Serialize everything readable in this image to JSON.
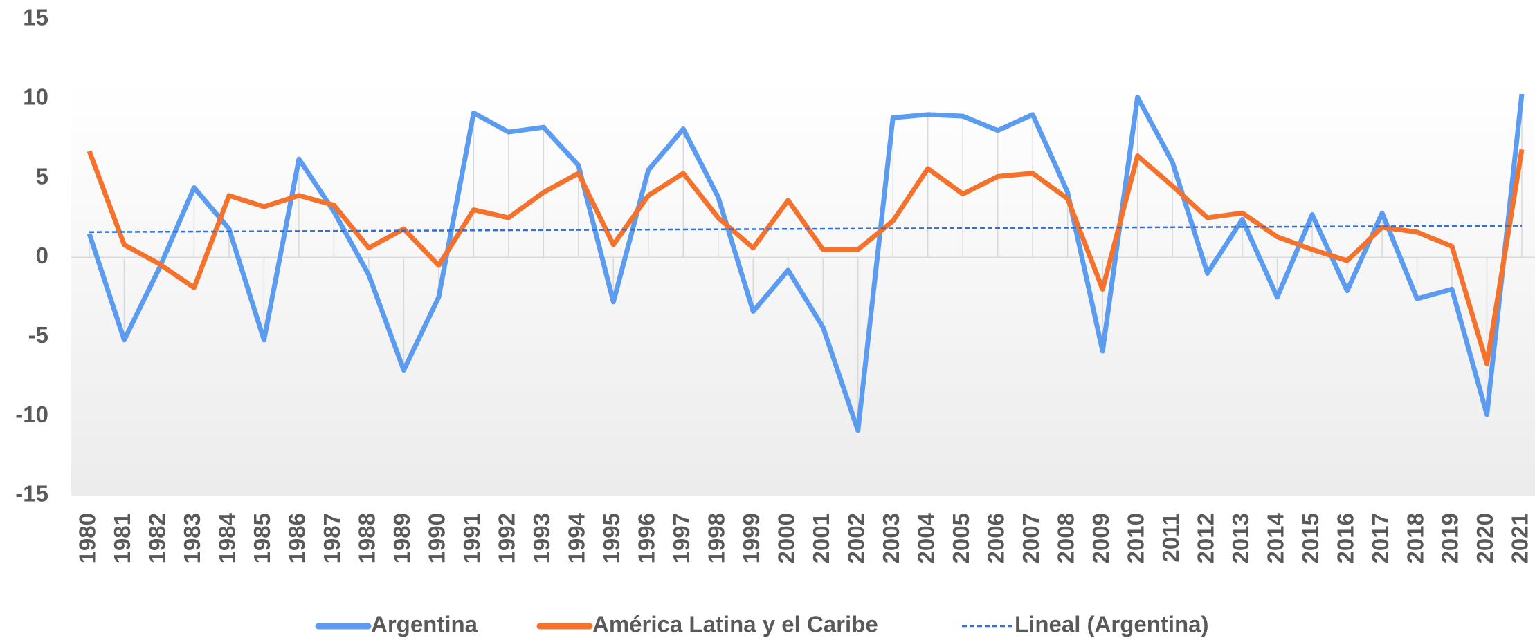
{
  "chart_data": {
    "type": "line",
    "categories": [
      "1980",
      "1981",
      "1982",
      "1983",
      "1984",
      "1985",
      "1986",
      "1987",
      "1988",
      "1989",
      "1990",
      "1991",
      "1992",
      "1993",
      "1994",
      "1995",
      "1996",
      "1997",
      "1998",
      "1999",
      "2000",
      "2001",
      "2002",
      "2003",
      "2004",
      "2005",
      "2006",
      "2007",
      "2008",
      "2009",
      "2010",
      "2011",
      "2012",
      "2013",
      "2014",
      "2015",
      "2016",
      "2017",
      "2018",
      "2019",
      "2020",
      "2021"
    ],
    "series": [
      {
        "name": "Argentina",
        "color": "#5b9bf0",
        "values": [
          1.5,
          -5.2,
          -0.7,
          4.4,
          1.8,
          -5.2,
          6.2,
          2.9,
          -1.1,
          -7.1,
          -2.5,
          9.1,
          7.9,
          8.2,
          5.8,
          -2.8,
          5.5,
          8.1,
          3.8,
          -3.4,
          -0.8,
          -4.4,
          -10.9,
          8.8,
          9.0,
          8.9,
          8.0,
          9.0,
          4.1,
          -5.9,
          10.1,
          6.0,
          -1.0,
          2.4,
          -2.5,
          2.7,
          -2.1,
          2.8,
          -2.6,
          -2.0,
          -9.9,
          10.3
        ]
      },
      {
        "name": "América Latina y el Caribe",
        "color": "#f4722b",
        "values": [
          6.7,
          0.8,
          -0.4,
          -1.9,
          3.9,
          3.2,
          3.9,
          3.3,
          0.6,
          1.8,
          -0.5,
          3.0,
          2.5,
          4.1,
          5.3,
          0.8,
          3.9,
          5.3,
          2.5,
          0.6,
          3.6,
          0.5,
          0.5,
          2.3,
          5.6,
          4.0,
          5.1,
          5.3,
          3.7,
          -2.0,
          6.4,
          4.5,
          2.5,
          2.8,
          1.3,
          0.5,
          -0.2,
          1.9,
          1.6,
          0.7,
          -6.7,
          6.8
        ]
      }
    ],
    "trendline": {
      "name": "Lineal (Argentina)",
      "color": "#2e6fd8",
      "x": [
        "1980",
        "2021"
      ],
      "values": [
        1.6,
        2.0
      ]
    },
    "ylim": [
      -15,
      15
    ],
    "yticks": [
      -15,
      -10,
      -5,
      0,
      5,
      10,
      15
    ],
    "grid": false,
    "drop_lines": true,
    "legend": "bottom"
  }
}
